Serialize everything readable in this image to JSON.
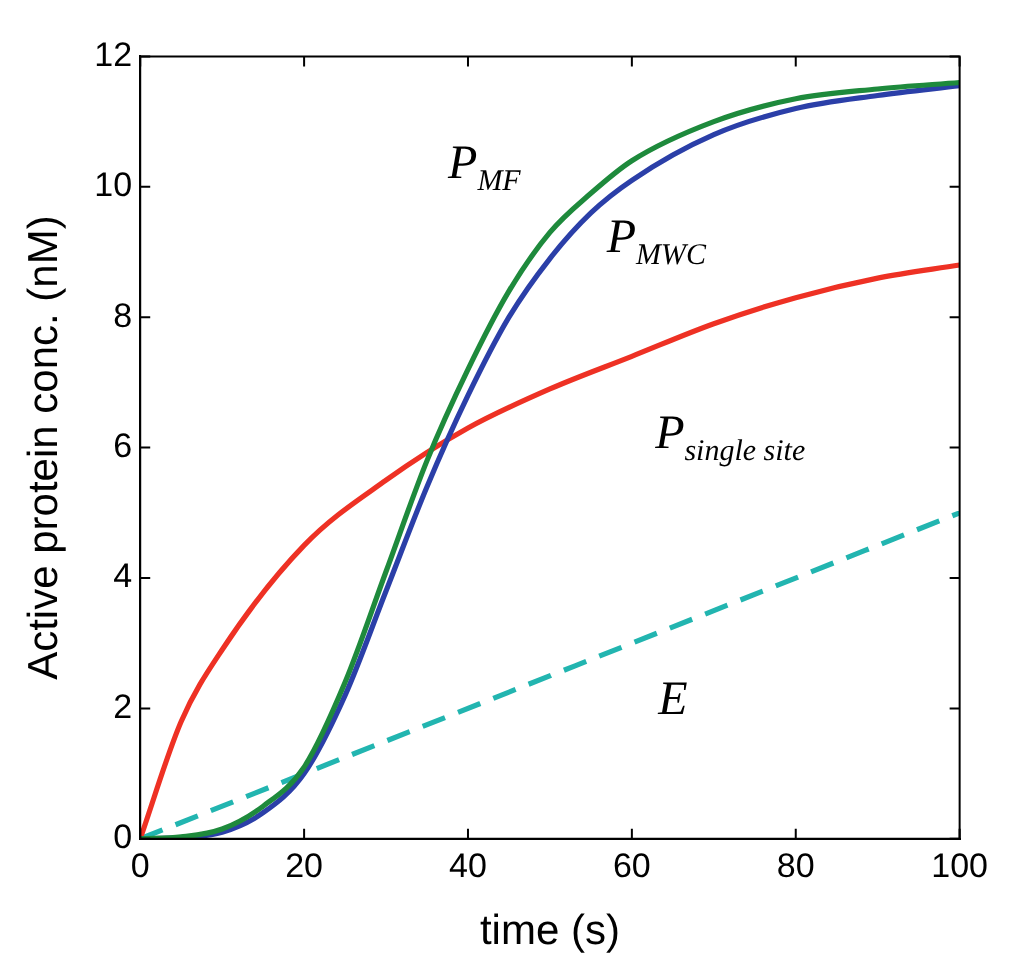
{
  "chart_data": {
    "type": "line",
    "xlabel": "time (s)",
    "ylabel": "Active protein conc. (nM)",
    "xlim": [
      0,
      100
    ],
    "xticks": [
      0,
      20,
      40,
      60,
      80,
      100
    ],
    "ylim": [
      0,
      12
    ],
    "yticks": [
      0,
      2,
      4,
      6,
      8,
      10,
      12
    ],
    "grid": false,
    "legend": false,
    "marker": "none",
    "series": [
      {
        "name": "P$_{MF}$",
        "color": "#1e8a3c",
        "x": [
          0,
          5,
          10,
          15,
          20,
          25,
          30,
          35,
          40,
          45,
          50,
          55,
          60,
          70,
          80,
          90,
          100
        ],
        "values": [
          0,
          0.03,
          0.15,
          0.5,
          1.1,
          2.4,
          4.1,
          5.8,
          7.2,
          8.4,
          9.3,
          9.9,
          10.4,
          11.0,
          11.35,
          11.5,
          11.6
        ]
      },
      {
        "name": "P$_{MWC}$",
        "color": "#2b3fa8",
        "x": [
          0,
          5,
          10,
          15,
          20,
          25,
          30,
          35,
          40,
          45,
          50,
          55,
          60,
          70,
          80,
          90,
          100
        ],
        "values": [
          0,
          0.02,
          0.1,
          0.4,
          1.0,
          2.2,
          3.8,
          5.4,
          6.8,
          8.0,
          8.9,
          9.6,
          10.1,
          10.8,
          11.2,
          11.4,
          11.55
        ]
      },
      {
        "name": "P$_{single site}$",
        "color": "#ee3124",
        "x": [
          0,
          5,
          10,
          20,
          30,
          40,
          50,
          60,
          70,
          80,
          90,
          100
        ],
        "values": [
          0,
          1.8,
          2.9,
          4.5,
          5.5,
          6.3,
          6.9,
          7.4,
          7.9,
          8.3,
          8.6,
          8.8
        ]
      },
      {
        "name": "E",
        "color": "#22b5b0",
        "line_style": "dashed",
        "x": [
          0,
          100
        ],
        "values": [
          0,
          5
        ]
      }
    ]
  }
}
